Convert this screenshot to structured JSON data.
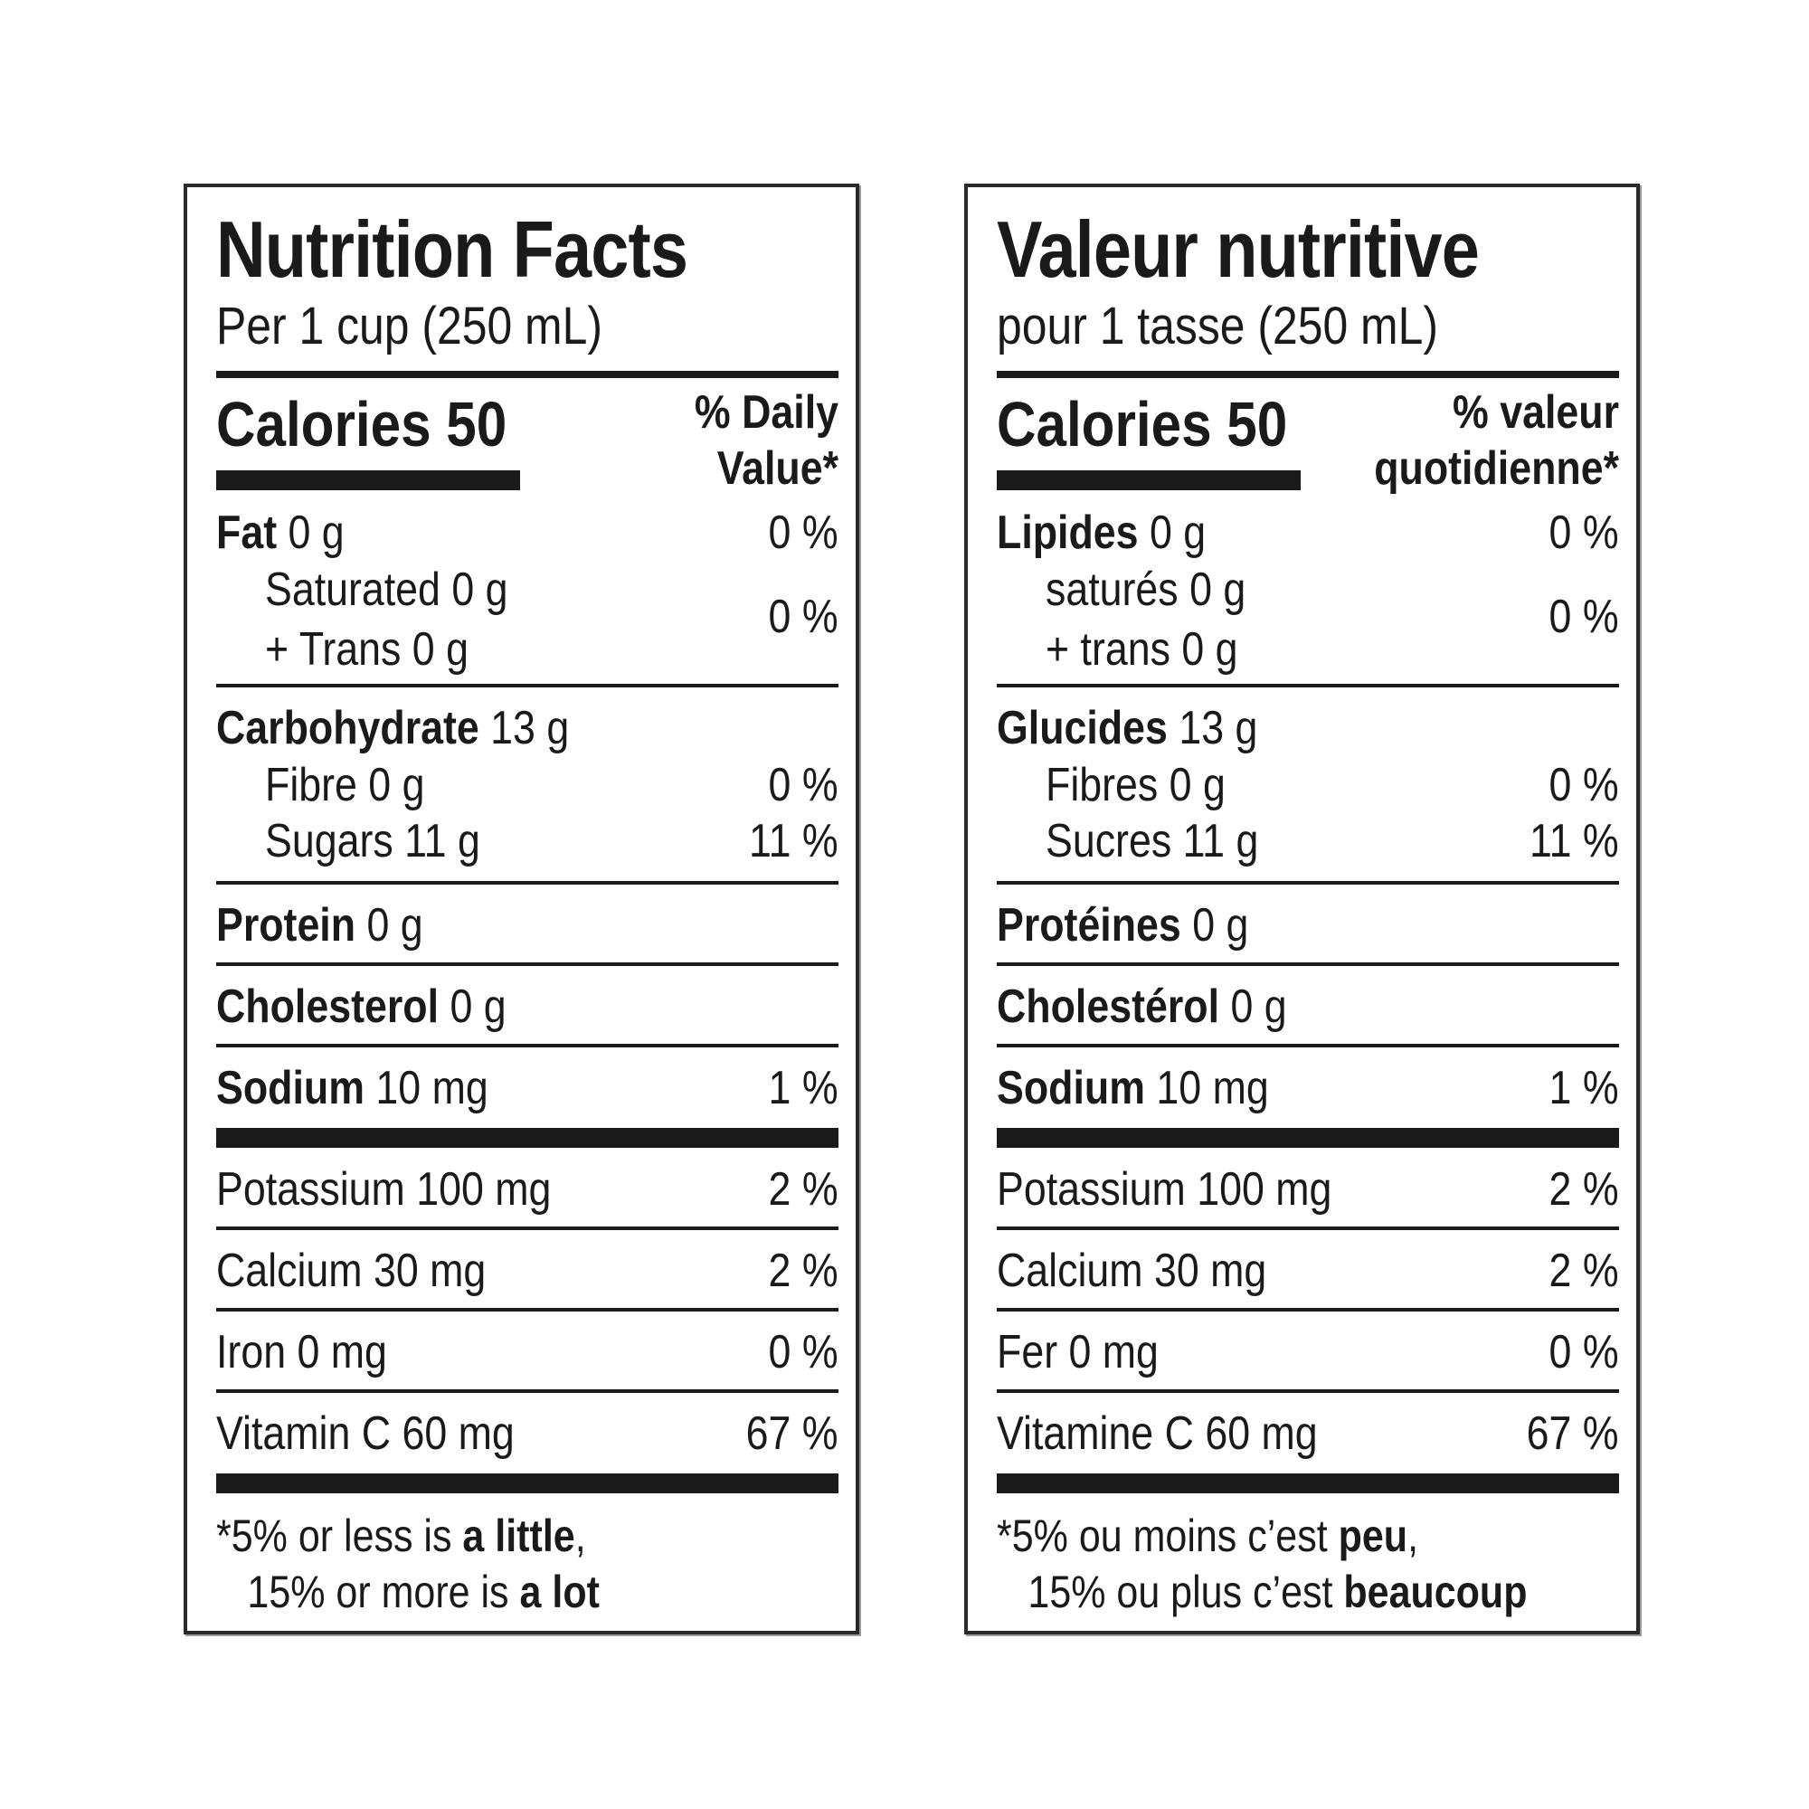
{
  "english": {
    "title": "Nutrition Facts",
    "serving": "Per 1 cup (250 mL)",
    "calories": "Calories 50",
    "dv_line1": "% Daily",
    "dv_line2": "Value*",
    "fat": {
      "name": "Fat",
      "amount": "0 g",
      "pct": "0 %"
    },
    "saturated": {
      "name": "Saturated 0 g"
    },
    "trans": {
      "name": "+ Trans 0 g"
    },
    "sat_trans_pct": "0 %",
    "carbohydrate": {
      "name": "Carbohydrate",
      "amount": "13 g"
    },
    "fibre": {
      "name": "Fibre 0 g",
      "pct": "0 %"
    },
    "sugars": {
      "name": "Sugars 11 g",
      "pct": "11 %"
    },
    "protein": {
      "name": "Protein",
      "amount": "0 g"
    },
    "cholesterol": {
      "name": "Cholesterol",
      "amount": "0 g"
    },
    "sodium": {
      "name": "Sodium",
      "amount": "10 mg",
      "pct": "1 %"
    },
    "potassium": {
      "name": "Potassium 100 mg",
      "pct": "2 %"
    },
    "calcium": {
      "name": "Calcium 30 mg",
      "pct": "2 %"
    },
    "iron": {
      "name": "Iron 0 mg",
      "pct": "0 %"
    },
    "vitamin_c": {
      "name": "Vitamin C 60 mg",
      "pct": "67 %"
    },
    "footnote": {
      "l1_pre": "*5% or less is ",
      "l1_bold": "a little",
      "l1_post": ",",
      "l2_pre": "15% or more is ",
      "l2_bold": "a lot"
    }
  },
  "french": {
    "title": "Valeur nutritive",
    "serving": "pour 1 tasse (250 mL)",
    "calories": "Calories 50",
    "dv_line1": "% valeur",
    "dv_line2": "quotidienne*",
    "fat": {
      "name": "Lipides",
      "amount": "0 g",
      "pct": "0 %"
    },
    "saturated": {
      "name": "saturés 0 g"
    },
    "trans": {
      "name": "+ trans 0 g"
    },
    "sat_trans_pct": "0 %",
    "carbohydrate": {
      "name": "Glucides",
      "amount": "13 g"
    },
    "fibre": {
      "name": "Fibres 0 g",
      "pct": "0 %"
    },
    "sugars": {
      "name": "Sucres 11 g",
      "pct": "11 %"
    },
    "protein": {
      "name": "Protéines",
      "amount": "0 g"
    },
    "cholesterol": {
      "name": "Cholestérol",
      "amount": "0 g"
    },
    "sodium": {
      "name": "Sodium",
      "amount": "10 mg",
      "pct": "1 %"
    },
    "potassium": {
      "name": "Potassium 100 mg",
      "pct": "2 %"
    },
    "calcium": {
      "name": "Calcium 30 mg",
      "pct": "2 %"
    },
    "iron": {
      "name": "Fer 0 mg",
      "pct": "0 %"
    },
    "vitamin_c": {
      "name": "Vitamine C 60 mg",
      "pct": "67 %"
    },
    "footnote": {
      "l1_pre": "*5% ou moins c’est ",
      "l1_bold": "peu",
      "l1_post": ",",
      "l2_pre": "15% ou plus c’est ",
      "l2_bold": "beaucoup"
    }
  }
}
